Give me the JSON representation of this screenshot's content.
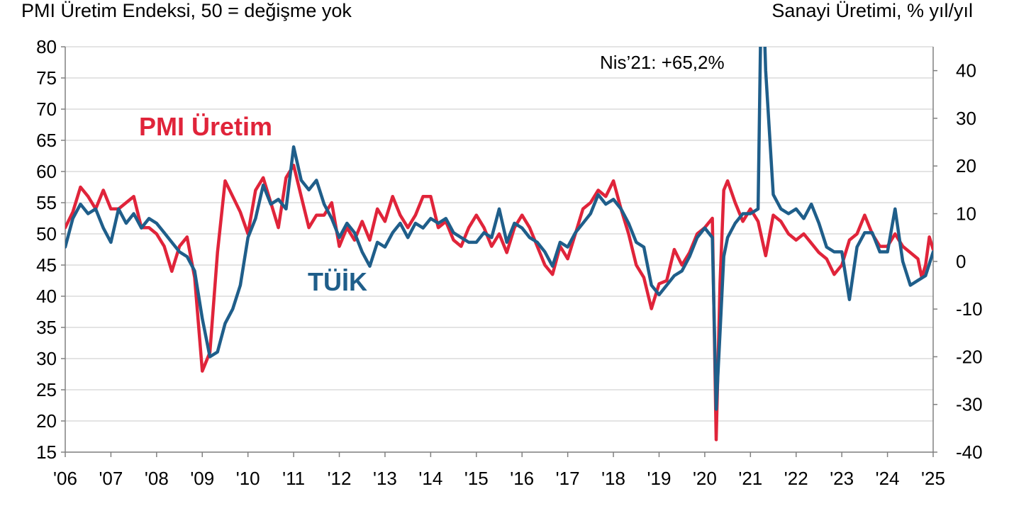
{
  "chart_data": {
    "type": "line",
    "left_axis_title": "PMI Üretim Endeksi, 50 = değişme yok",
    "right_axis_title": "Sanayi Üretimi, % yıl/yıl",
    "annotation": "Nis’21: +65,2%",
    "y_left": {
      "min": 15,
      "max": 80,
      "ticks": [
        "80",
        "75",
        "70",
        "65",
        "60",
        "55",
        "50",
        "45",
        "40",
        "35",
        "30",
        "25",
        "20",
        "15"
      ]
    },
    "y_right": {
      "min": -40,
      "max": 45,
      "ticks": [
        "40",
        "30",
        "20",
        "10",
        "0",
        "-10",
        "-20",
        "-30",
        "-40"
      ]
    },
    "x_tick_labels": [
      "'06",
      "'07",
      "'08",
      "'09",
      "'10",
      "'11",
      "'12",
      "'13",
      "'14",
      "'15",
      "'16",
      "'17",
      "'18",
      "'19",
      "'20",
      "'21",
      "'22",
      "'23",
      "'24",
      "'25"
    ],
    "x_range": [
      "2006-01",
      "2025-01"
    ],
    "grid": true,
    "series": [
      {
        "name": "PMI Üretim",
        "axis": "left",
        "color": "#e0243a",
        "points": [
          [
            "2006-01",
            51
          ],
          [
            "2006-03",
            53.5
          ],
          [
            "2006-05",
            57.5
          ],
          [
            "2006-07",
            56
          ],
          [
            "2006-09",
            54
          ],
          [
            "2006-11",
            57
          ],
          [
            "2007-01",
            54
          ],
          [
            "2007-03",
            54
          ],
          [
            "2007-05",
            55
          ],
          [
            "2007-07",
            56
          ],
          [
            "2007-09",
            51
          ],
          [
            "2007-11",
            51
          ],
          [
            "2008-01",
            50
          ],
          [
            "2008-03",
            48
          ],
          [
            "2008-05",
            44
          ],
          [
            "2008-07",
            48
          ],
          [
            "2008-09",
            49.5
          ],
          [
            "2008-11",
            43
          ],
          [
            "2009-01",
            28
          ],
          [
            "2009-03",
            31
          ],
          [
            "2009-05",
            47
          ],
          [
            "2009-07",
            58.5
          ],
          [
            "2009-09",
            56
          ],
          [
            "2009-11",
            53.5
          ],
          [
            "2010-01",
            50
          ],
          [
            "2010-03",
            57
          ],
          [
            "2010-05",
            59
          ],
          [
            "2010-07",
            55
          ],
          [
            "2010-09",
            51
          ],
          [
            "2010-11",
            59
          ],
          [
            "2011-01",
            61
          ],
          [
            "2011-03",
            56
          ],
          [
            "2011-05",
            51
          ],
          [
            "2011-07",
            53
          ],
          [
            "2011-09",
            53
          ],
          [
            "2011-11",
            55
          ],
          [
            "2012-01",
            48
          ],
          [
            "2012-03",
            51
          ],
          [
            "2012-05",
            49
          ],
          [
            "2012-07",
            52
          ],
          [
            "2012-09",
            49
          ],
          [
            "2012-11",
            54
          ],
          [
            "2013-01",
            52
          ],
          [
            "2013-03",
            56
          ],
          [
            "2013-05",
            53
          ],
          [
            "2013-07",
            51
          ],
          [
            "2013-09",
            53
          ],
          [
            "2013-11",
            56
          ],
          [
            "2014-01",
            56
          ],
          [
            "2014-03",
            51
          ],
          [
            "2014-05",
            52
          ],
          [
            "2014-07",
            49
          ],
          [
            "2014-09",
            48
          ],
          [
            "2014-11",
            51
          ],
          [
            "2015-01",
            53
          ],
          [
            "2015-03",
            51
          ],
          [
            "2015-05",
            48
          ],
          [
            "2015-07",
            50
          ],
          [
            "2015-09",
            47
          ],
          [
            "2015-11",
            51
          ],
          [
            "2016-01",
            53
          ],
          [
            "2016-03",
            51
          ],
          [
            "2016-05",
            48
          ],
          [
            "2016-07",
            45
          ],
          [
            "2016-09",
            43.5
          ],
          [
            "2016-11",
            48
          ],
          [
            "2017-01",
            46
          ],
          [
            "2017-03",
            50
          ],
          [
            "2017-05",
            54
          ],
          [
            "2017-07",
            55
          ],
          [
            "2017-09",
            57
          ],
          [
            "2017-11",
            56
          ],
          [
            "2018-01",
            58.5
          ],
          [
            "2018-03",
            54
          ],
          [
            "2018-05",
            50
          ],
          [
            "2018-07",
            45
          ],
          [
            "2018-09",
            43
          ],
          [
            "2018-11",
            38
          ],
          [
            "2019-01",
            42
          ],
          [
            "2019-03",
            42.5
          ],
          [
            "2019-05",
            47.5
          ],
          [
            "2019-07",
            45
          ],
          [
            "2019-09",
            47
          ],
          [
            "2019-11",
            50
          ],
          [
            "2020-01",
            51
          ],
          [
            "2020-03",
            52.5
          ],
          [
            "2020-04",
            17
          ],
          [
            "2020-05",
            42
          ],
          [
            "2020-06",
            57
          ],
          [
            "2020-07",
            58.5
          ],
          [
            "2020-09",
            55
          ],
          [
            "2020-11",
            52
          ],
          [
            "2021-01",
            54
          ],
          [
            "2021-03",
            52
          ],
          [
            "2021-05",
            46.5
          ],
          [
            "2021-07",
            53
          ],
          [
            "2021-09",
            52
          ],
          [
            "2021-11",
            50
          ],
          [
            "2022-01",
            49
          ],
          [
            "2022-03",
            50
          ],
          [
            "2022-05",
            48.5
          ],
          [
            "2022-07",
            47
          ],
          [
            "2022-09",
            46
          ],
          [
            "2022-11",
            43.5
          ],
          [
            "2023-01",
            45
          ],
          [
            "2023-03",
            49
          ],
          [
            "2023-05",
            50
          ],
          [
            "2023-07",
            53
          ],
          [
            "2023-09",
            50
          ],
          [
            "2023-11",
            48
          ],
          [
            "2024-01",
            48
          ],
          [
            "2024-03",
            50
          ],
          [
            "2024-05",
            48
          ],
          [
            "2024-07",
            47
          ],
          [
            "2024-09",
            46
          ],
          [
            "2024-10",
            43
          ],
          [
            "2024-11",
            45
          ],
          [
            "2024-12",
            49.5
          ],
          [
            "2025-01",
            47.5
          ]
        ]
      },
      {
        "name": "TÜİK",
        "axis": "right",
        "color": "#1f5e8a",
        "points": [
          [
            "2006-01",
            3
          ],
          [
            "2006-03",
            9
          ],
          [
            "2006-05",
            12
          ],
          [
            "2006-07",
            10
          ],
          [
            "2006-09",
            11
          ],
          [
            "2006-11",
            7
          ],
          [
            "2007-01",
            4
          ],
          [
            "2007-03",
            11
          ],
          [
            "2007-05",
            8
          ],
          [
            "2007-07",
            10
          ],
          [
            "2007-09",
            7
          ],
          [
            "2007-11",
            9
          ],
          [
            "2008-01",
            8
          ],
          [
            "2008-03",
            6
          ],
          [
            "2008-05",
            4
          ],
          [
            "2008-07",
            2
          ],
          [
            "2008-09",
            1
          ],
          [
            "2008-11",
            -2
          ],
          [
            "2009-01",
            -12
          ],
          [
            "2009-03",
            -20
          ],
          [
            "2009-05",
            -19
          ],
          [
            "2009-07",
            -13
          ],
          [
            "2009-09",
            -10
          ],
          [
            "2009-11",
            -5
          ],
          [
            "2010-01",
            5
          ],
          [
            "2010-03",
            9
          ],
          [
            "2010-05",
            16
          ],
          [
            "2010-07",
            12
          ],
          [
            "2010-09",
            13
          ],
          [
            "2010-11",
            11
          ],
          [
            "2011-01",
            24
          ],
          [
            "2011-03",
            17
          ],
          [
            "2011-05",
            15
          ],
          [
            "2011-07",
            17
          ],
          [
            "2011-09",
            12
          ],
          [
            "2011-11",
            9
          ],
          [
            "2012-01",
            5
          ],
          [
            "2012-03",
            8
          ],
          [
            "2012-05",
            6
          ],
          [
            "2012-07",
            2
          ],
          [
            "2012-09",
            -1
          ],
          [
            "2012-11",
            4
          ],
          [
            "2013-01",
            3
          ],
          [
            "2013-03",
            6
          ],
          [
            "2013-05",
            8
          ],
          [
            "2013-07",
            5
          ],
          [
            "2013-09",
            8
          ],
          [
            "2013-11",
            7
          ],
          [
            "2014-01",
            9
          ],
          [
            "2014-03",
            8
          ],
          [
            "2014-05",
            9
          ],
          [
            "2014-07",
            6
          ],
          [
            "2014-09",
            5
          ],
          [
            "2014-11",
            4
          ],
          [
            "2015-01",
            4
          ],
          [
            "2015-03",
            6
          ],
          [
            "2015-05",
            5
          ],
          [
            "2015-07",
            11
          ],
          [
            "2015-09",
            4
          ],
          [
            "2015-11",
            8
          ],
          [
            "2016-01",
            7
          ],
          [
            "2016-03",
            5
          ],
          [
            "2016-05",
            4
          ],
          [
            "2016-07",
            2
          ],
          [
            "2016-09",
            -1
          ],
          [
            "2016-11",
            4
          ],
          [
            "2017-01",
            3
          ],
          [
            "2017-03",
            6
          ],
          [
            "2017-05",
            8
          ],
          [
            "2017-07",
            10
          ],
          [
            "2017-09",
            14
          ],
          [
            "2017-11",
            12
          ],
          [
            "2018-01",
            13
          ],
          [
            "2018-03",
            11
          ],
          [
            "2018-05",
            8
          ],
          [
            "2018-07",
            4
          ],
          [
            "2018-09",
            3
          ],
          [
            "2018-11",
            -5
          ],
          [
            "2019-01",
            -7
          ],
          [
            "2019-03",
            -5
          ],
          [
            "2019-05",
            -3
          ],
          [
            "2019-07",
            -2
          ],
          [
            "2019-09",
            1
          ],
          [
            "2019-11",
            5
          ],
          [
            "2020-01",
            7
          ],
          [
            "2020-03",
            5
          ],
          [
            "2020-04",
            -31
          ],
          [
            "2020-05",
            -15
          ],
          [
            "2020-06",
            1
          ],
          [
            "2020-07",
            5
          ],
          [
            "2020-09",
            8
          ],
          [
            "2020-11",
            10
          ],
          [
            "2021-01",
            10
          ],
          [
            "2021-03",
            11
          ],
          [
            "2021-04",
            65.2
          ],
          [
            "2021-05",
            40
          ],
          [
            "2021-07",
            14
          ],
          [
            "2021-09",
            11
          ],
          [
            "2021-11",
            10
          ],
          [
            "2022-01",
            11
          ],
          [
            "2022-03",
            9
          ],
          [
            "2022-05",
            12
          ],
          [
            "2022-07",
            8
          ],
          [
            "2022-09",
            3
          ],
          [
            "2022-11",
            2
          ],
          [
            "2023-01",
            2
          ],
          [
            "2023-03",
            -8
          ],
          [
            "2023-05",
            3
          ],
          [
            "2023-07",
            6
          ],
          [
            "2023-09",
            6
          ],
          [
            "2023-11",
            2
          ],
          [
            "2024-01",
            2
          ],
          [
            "2024-03",
            11
          ],
          [
            "2024-05",
            0
          ],
          [
            "2024-07",
            -5
          ],
          [
            "2024-09",
            -4
          ],
          [
            "2024-11",
            -3
          ],
          [
            "2025-01",
            2
          ]
        ]
      }
    ]
  }
}
